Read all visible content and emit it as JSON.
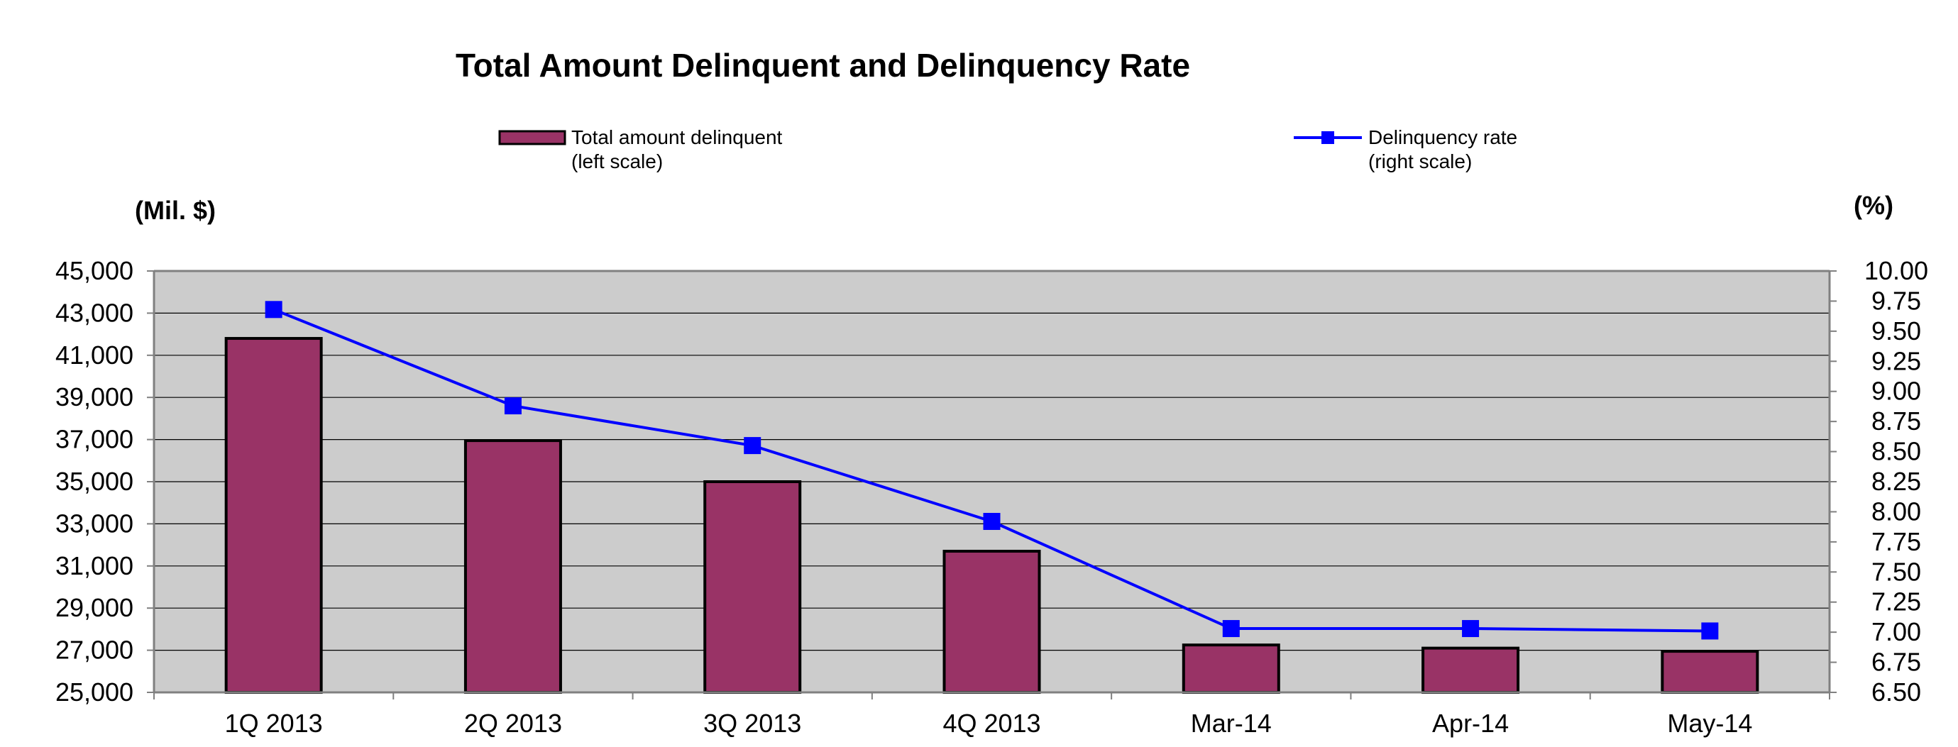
{
  "chart_data": {
    "type": "bar",
    "title": "Total Amount Delinquent and Delinquency Rate",
    "categories": [
      "1Q 2013",
      "2Q 2013",
      "3Q 2013",
      "4Q 2013",
      "Mar-14",
      "Apr-14",
      "May-14"
    ],
    "series": [
      {
        "name": "Total amount delinquent",
        "name_note": "(left scale)",
        "type": "bar",
        "axis": "left",
        "color": "#993366",
        "values": [
          41800,
          36950,
          35000,
          31700,
          27250,
          27100,
          26950
        ]
      },
      {
        "name": "Delinquency rate",
        "name_note": "(right scale)",
        "type": "line",
        "axis": "right",
        "color": "#0000ff",
        "values": [
          9.68,
          8.88,
          8.55,
          7.92,
          7.03,
          7.03,
          7.01
        ]
      }
    ],
    "ylabel_left": "(Mil. $)",
    "ylabel_right": "(%)",
    "ylim_left": [
      25000,
      45000
    ],
    "ylim_right": [
      6.5,
      10.0
    ],
    "yticks_left": [
      "25,000",
      "27,000",
      "29,000",
      "31,000",
      "33,000",
      "35,000",
      "37,000",
      "39,000",
      "41,000",
      "43,000",
      "45,000"
    ],
    "yticks_right": [
      "6.50",
      "6.75",
      "7.00",
      "7.25",
      "7.50",
      "7.75",
      "8.00",
      "8.25",
      "8.50",
      "8.75",
      "9.00",
      "9.25",
      "9.50",
      "9.75",
      "10.00"
    ],
    "grid": true,
    "legend_position": "top",
    "plot_background": "#cccccc"
  }
}
